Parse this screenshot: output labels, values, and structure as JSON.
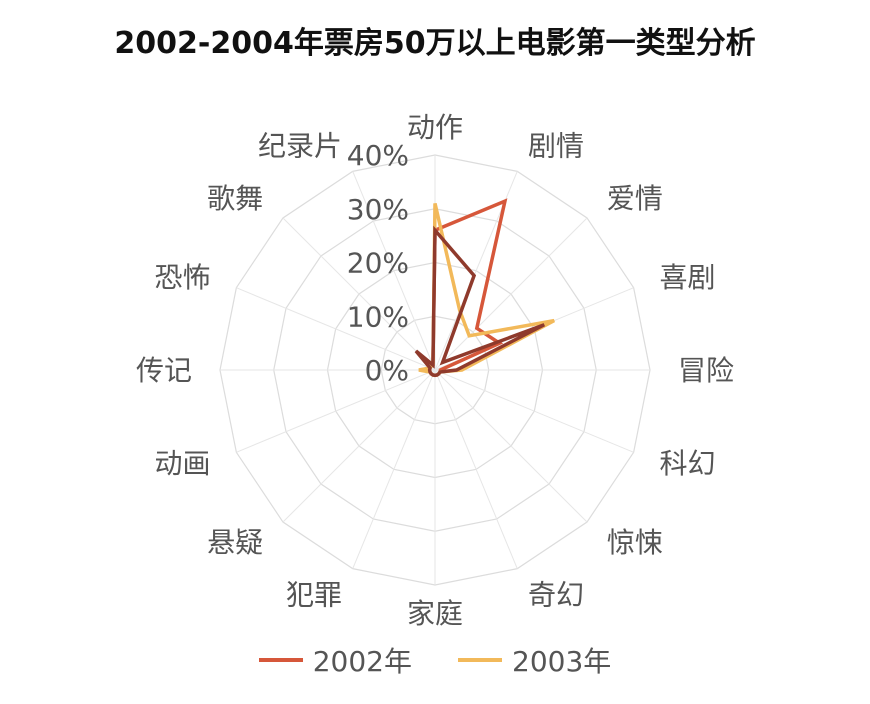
{
  "chart_data": {
    "type": "radar",
    "title": "2002-2004年票房50万以上电影第一类型分析",
    "categories": [
      "动作",
      "剧情",
      "爱情",
      "喜剧",
      "冒险",
      "科幻",
      "惊悚",
      "奇幻",
      "家庭",
      "犯罪",
      "悬疑",
      "动画",
      "传记",
      "恐怖",
      "歌舞",
      "纪录片"
    ],
    "tick_labels": [
      "0%",
      "10%",
      "20%",
      "30%",
      "40%"
    ],
    "rlim": [
      0,
      40
    ],
    "grid": true,
    "legend_position": "bottom",
    "series": [
      {
        "name": "2002年",
        "color": "#d6573a",
        "values": [
          26,
          34,
          11,
          13,
          1,
          1,
          1,
          1,
          1,
          1,
          1,
          1,
          1,
          1,
          1,
          1
        ]
      },
      {
        "name": "2003年",
        "color": "#f2b95a",
        "values": [
          31,
          12,
          9,
          24,
          5,
          1,
          1,
          1,
          1,
          1,
          1,
          1,
          3,
          1,
          1,
          1
        ]
      },
      {
        "name": "",
        "color": "#8f3a2c",
        "values": [
          26,
          19,
          2,
          22,
          4,
          1,
          1,
          1,
          1,
          1,
          1,
          1,
          1,
          1,
          5,
          1
        ]
      }
    ]
  }
}
